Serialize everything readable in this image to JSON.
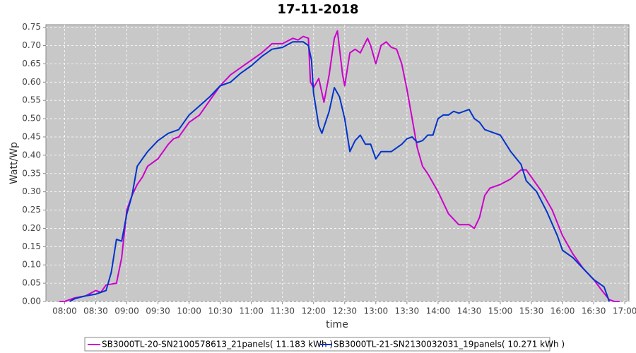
{
  "chart_data": {
    "type": "line",
    "title": "17-11-2018",
    "x_label": "time",
    "y_label": "Watt/Wp",
    "xlim": [
      "07:42",
      "17:04"
    ],
    "xticks": [
      "08:00",
      "08:30",
      "09:00",
      "09:30",
      "10:00",
      "10:30",
      "11:00",
      "11:30",
      "12:00",
      "12:30",
      "13:00",
      "13:30",
      "14:00",
      "14:30",
      "15:00",
      "15:30",
      "16:00",
      "16:30",
      "17:00"
    ],
    "ylim": [
      0,
      0.757
    ],
    "yticks": [
      {
        "value": 0,
        "label": "0.00"
      },
      0.05,
      {
        "value": 0.1,
        "label": "0.10"
      },
      0.15,
      {
        "value": 0.2,
        "label": "0.20"
      },
      0.25,
      {
        "value": 0.3,
        "label": "0.30"
      },
      0.35,
      {
        "value": 0.4,
        "label": "0.40"
      },
      0.45,
      {
        "value": 0.5,
        "label": "0.50"
      },
      0.55,
      {
        "value": 0.6,
        "label": "0.60"
      },
      0.65,
      {
        "value": 0.7,
        "label": "0.70"
      },
      0.75
    ],
    "grid": true,
    "legend": "bottom",
    "series": [
      {
        "name": "SB3000TL-20-SN2100578613_21panels( 11.183 kWh )",
        "color": "#cc00cc",
        "x": [
          "07:55",
          "08:00",
          "08:10",
          "08:20",
          "08:30",
          "08:35",
          "08:40",
          "08:50",
          "08:55",
          "09:00",
          "09:05",
          "09:10",
          "09:15",
          "09:20",
          "09:30",
          "09:40",
          "09:45",
          "09:50",
          "10:00",
          "10:10",
          "10:20",
          "10:30",
          "10:40",
          "10:50",
          "11:00",
          "11:10",
          "11:20",
          "11:30",
          "11:40",
          "11:45",
          "11:50",
          "11:55",
          "11:57",
          "12:00",
          "12:05",
          "12:10",
          "12:15",
          "12:20",
          "12:23",
          "12:28",
          "12:30",
          "12:35",
          "12:40",
          "12:45",
          "12:52",
          "12:55",
          "13:00",
          "13:05",
          "13:10",
          "13:15",
          "13:20",
          "13:25",
          "13:30",
          "13:35",
          "13:40",
          "13:45",
          "13:50",
          "14:00",
          "14:10",
          "14:20",
          "14:30",
          "14:35",
          "14:40",
          "14:45",
          "14:50",
          "15:00",
          "15:10",
          "15:20",
          "15:25",
          "15:30",
          "15:40",
          "15:50",
          "16:00",
          "16:10",
          "16:20",
          "16:30",
          "16:38",
          "16:45",
          "16:50",
          "16:55"
        ],
        "values": [
          0,
          0,
          0.01,
          0.015,
          0.03,
          0.025,
          0.045,
          0.05,
          0.12,
          0.25,
          0.29,
          0.32,
          0.34,
          0.37,
          0.39,
          0.43,
          0.445,
          0.45,
          0.49,
          0.51,
          0.55,
          0.59,
          0.62,
          0.64,
          0.66,
          0.68,
          0.705,
          0.705,
          0.72,
          0.715,
          0.725,
          0.72,
          0.6,
          0.585,
          0.61,
          0.545,
          0.62,
          0.72,
          0.74,
          0.62,
          0.59,
          0.68,
          0.69,
          0.68,
          0.72,
          0.7,
          0.65,
          0.7,
          0.71,
          0.695,
          0.69,
          0.65,
          0.58,
          0.5,
          0.42,
          0.37,
          0.35,
          0.3,
          0.24,
          0.21,
          0.21,
          0.2,
          0.23,
          0.29,
          0.31,
          0.32,
          0.335,
          0.36,
          0.36,
          0.34,
          0.3,
          0.25,
          0.18,
          0.13,
          0.09,
          0.06,
          0.03,
          0.005,
          0,
          0
        ]
      },
      {
        "name": "SB3000TL-21-SN2130032031_19panels( 10.271 kWh )",
        "color": "#0033cc",
        "x": [
          "08:05",
          "08:10",
          "08:20",
          "08:30",
          "08:40",
          "08:45",
          "08:50",
          "08:55",
          "09:00",
          "09:05",
          "09:10",
          "09:15",
          "09:20",
          "09:30",
          "09:40",
          "09:50",
          "10:00",
          "10:10",
          "10:20",
          "10:30",
          "10:40",
          "10:50",
          "11:00",
          "11:10",
          "11:20",
          "11:30",
          "11:40",
          "11:50",
          "11:55",
          "11:58",
          "12:00",
          "12:05",
          "12:08",
          "12:15",
          "12:20",
          "12:25",
          "12:30",
          "12:35",
          "12:40",
          "12:45",
          "12:50",
          "12:55",
          "13:00",
          "13:05",
          "13:15",
          "13:25",
          "13:30",
          "13:35",
          "13:40",
          "13:45",
          "13:50",
          "13:55",
          "14:00",
          "14:05",
          "14:10",
          "14:15",
          "14:20",
          "14:25",
          "14:30",
          "14:35",
          "14:40",
          "14:45",
          "14:50",
          "15:00",
          "15:10",
          "15:20",
          "15:25",
          "15:35",
          "15:45",
          "15:55",
          "16:00",
          "16:10",
          "16:20",
          "16:30",
          "16:40",
          "16:45"
        ],
        "values": [
          0,
          0.008,
          0.015,
          0.02,
          0.03,
          0.08,
          0.17,
          0.165,
          0.24,
          0.29,
          0.37,
          0.39,
          0.41,
          0.44,
          0.46,
          0.47,
          0.51,
          0.535,
          0.56,
          0.59,
          0.6,
          0.625,
          0.645,
          0.67,
          0.69,
          0.695,
          0.71,
          0.71,
          0.7,
          0.66,
          0.57,
          0.48,
          0.46,
          0.52,
          0.585,
          0.56,
          0.5,
          0.41,
          0.44,
          0.455,
          0.43,
          0.43,
          0.39,
          0.41,
          0.41,
          0.43,
          0.445,
          0.45,
          0.435,
          0.44,
          0.455,
          0.455,
          0.5,
          0.51,
          0.51,
          0.52,
          0.515,
          0.52,
          0.525,
          0.5,
          0.49,
          0.47,
          0.465,
          0.455,
          0.41,
          0.375,
          0.33,
          0.3,
          0.245,
          0.18,
          0.14,
          0.12,
          0.09,
          0.06,
          0.04,
          0
        ]
      }
    ]
  }
}
